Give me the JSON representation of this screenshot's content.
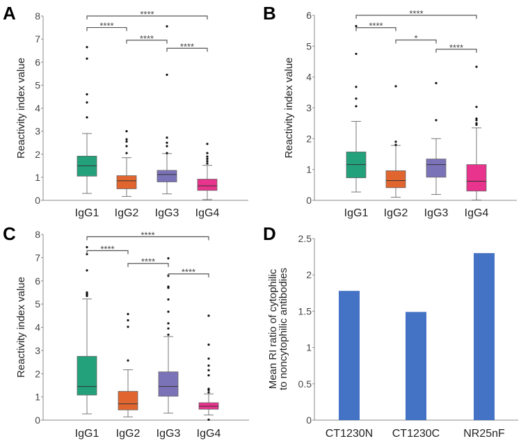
{
  "chart_data": [
    {
      "panel": "A",
      "type": "boxplot",
      "ylabel": "Reactivity index value",
      "ylim": [
        0,
        8
      ],
      "yticks": [
        "0",
        "1",
        "2",
        "3",
        "4",
        "5",
        "6",
        "7",
        "8"
      ],
      "categories": [
        "IgG1",
        "IgG2",
        "IgG3",
        "IgG4"
      ],
      "colors": [
        "#23a17a",
        "#e0652f",
        "#7b73b8",
        "#e8348c"
      ],
      "boxes": [
        {
          "min": 0.3,
          "q1": 1.05,
          "median": 1.5,
          "q3": 1.92,
          "max": 2.9,
          "outliers": [
            3.6,
            4.25,
            4.6,
            6.15,
            6.65
          ]
        },
        {
          "min": 0.17,
          "q1": 0.5,
          "median": 0.85,
          "q3": 1.07,
          "max": 1.85,
          "outliers": [
            2.05,
            2.35,
            2.55,
            2.65,
            3.0
          ]
        },
        {
          "min": 0.28,
          "q1": 0.8,
          "median": 1.12,
          "q3": 1.3,
          "max": 2.03,
          "outliers": [
            2.05,
            2.35,
            2.5,
            2.72,
            5.45,
            7.55
          ]
        },
        {
          "min": 0.03,
          "q1": 0.43,
          "median": 0.63,
          "q3": 0.92,
          "max": 1.52,
          "outliers": [
            1.6,
            1.7,
            1.8,
            1.9,
            2.05,
            2.45
          ]
        }
      ],
      "significance": [
        {
          "from": 0,
          "to": 3,
          "level": 8.0,
          "label": "****"
        },
        {
          "from": 0,
          "to": 1,
          "level": 7.5,
          "label": "****"
        },
        {
          "from": 1,
          "to": 2,
          "level": 6.95,
          "label": "****"
        },
        {
          "from": 2,
          "to": 3,
          "level": 6.6,
          "label": "****"
        }
      ]
    },
    {
      "panel": "B",
      "type": "boxplot",
      "ylabel": "Reactivity index value",
      "ylim": [
        0,
        6
      ],
      "yticks": [
        "0",
        "1",
        "2",
        "3",
        "4",
        "5",
        "6"
      ],
      "categories": [
        "IgG1",
        "IgG2",
        "IgG3",
        "IgG4"
      ],
      "colors": [
        "#23a17a",
        "#e0652f",
        "#7b73b8",
        "#e8348c"
      ],
      "boxes": [
        {
          "min": 0.27,
          "q1": 0.73,
          "median": 1.16,
          "q3": 1.57,
          "max": 2.56,
          "outliers": [
            3.05,
            3.3,
            3.68,
            4.75,
            5.65
          ]
        },
        {
          "min": 0.1,
          "q1": 0.41,
          "median": 0.64,
          "q3": 0.96,
          "max": 1.78,
          "outliers": [
            1.8,
            1.9,
            3.7
          ]
        },
        {
          "min": 0.19,
          "q1": 0.75,
          "median": 1.16,
          "q3": 1.34,
          "max": 2.0,
          "outliers": [
            2.6,
            3.8
          ]
        },
        {
          "min": 0.01,
          "q1": 0.3,
          "median": 0.62,
          "q3": 1.16,
          "max": 2.35,
          "outliers": [
            2.45,
            2.5,
            2.6,
            2.65,
            3.03,
            4.33
          ]
        }
      ],
      "significance": [
        {
          "from": 0,
          "to": 3,
          "level": 6.0,
          "label": "****"
        },
        {
          "from": 0,
          "to": 1,
          "level": 5.6,
          "label": "****"
        },
        {
          "from": 1,
          "to": 2,
          "level": 5.2,
          "label": "*"
        },
        {
          "from": 2,
          "to": 3,
          "level": 4.9,
          "label": "****"
        }
      ]
    },
    {
      "panel": "C",
      "type": "boxplot",
      "ylabel": "Reactivity index value",
      "ylim": [
        0,
        8
      ],
      "yticks": [
        "0",
        "1",
        "2",
        "3",
        "4",
        "5",
        "6",
        "7",
        "8"
      ],
      "categories": [
        "IgG1",
        "IgG2",
        "IgG3",
        "IgG4"
      ],
      "colors": [
        "#23a17a",
        "#e0652f",
        "#7b73b8",
        "#e8348c"
      ],
      "boxes": [
        {
          "min": 0.27,
          "q1": 1.08,
          "median": 1.45,
          "q3": 2.75,
          "max": 5.22,
          "outliers": [
            5.35,
            5.4,
            5.45,
            5.5,
            6.45,
            7.15,
            7.45
          ]
        },
        {
          "min": 0.14,
          "q1": 0.44,
          "median": 0.7,
          "q3": 1.24,
          "max": 2.17,
          "outliers": [
            2.57,
            4.02,
            4.3,
            4.57
          ]
        },
        {
          "min": 0.3,
          "q1": 1.03,
          "median": 1.45,
          "q3": 2.08,
          "max": 3.6,
          "outliers": [
            3.68,
            3.95,
            4.17,
            4.67,
            5.2,
            5.7,
            5.75,
            6.22,
            6.97
          ]
        },
        {
          "min": 0.22,
          "q1": 0.47,
          "median": 0.6,
          "q3": 0.75,
          "max": 1.13,
          "outliers": [
            0.02,
            1.2,
            1.3,
            1.35,
            1.93,
            2.15,
            2.35,
            2.65,
            3.25,
            4.5
          ]
        }
      ],
      "significance": [
        {
          "from": 0,
          "to": 3,
          "level": 7.9,
          "label": "****"
        },
        {
          "from": 0,
          "to": 1,
          "level": 7.3,
          "label": "****"
        },
        {
          "from": 1,
          "to": 2,
          "level": 6.75,
          "label": "****"
        },
        {
          "from": 2,
          "to": 3,
          "level": 6.3,
          "label": "****"
        }
      ]
    },
    {
      "panel": "D",
      "type": "bar",
      "ylabel_lines": [
        "Mean RI ratio of cytophilic",
        "to noncytophilic antibodies"
      ],
      "ylim": [
        0,
        2.5
      ],
      "yticks": [
        "0",
        "0.5",
        "1",
        "1.5",
        "2",
        "2.5"
      ],
      "categories": [
        "CT1230N",
        "CT1230C",
        "NR25nF"
      ],
      "values": [
        1.78,
        1.49,
        2.3
      ],
      "color": "#4472c4"
    }
  ]
}
